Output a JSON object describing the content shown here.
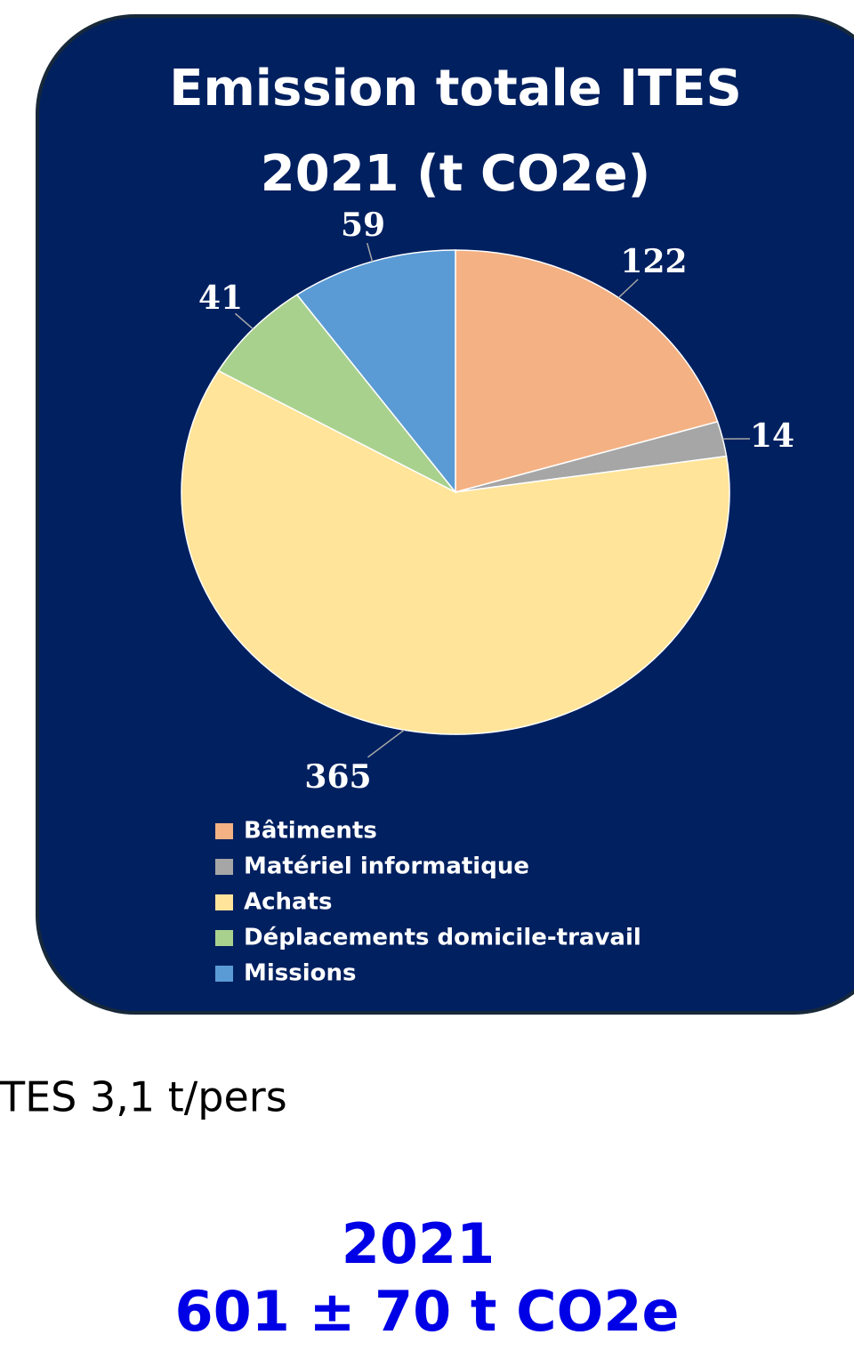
{
  "chart_data": {
    "type": "pie",
    "title": "Emission totale ITES 2021 (t CO2e)",
    "categories": [
      "Bâtiments",
      "Matériel informatique",
      "Achats",
      "Déplacements domicile-travail",
      "Missions"
    ],
    "values": [
      122,
      14,
      365,
      41,
      59
    ],
    "colors": [
      "#f4b183",
      "#a6a6a6",
      "#ffe499",
      "#a9d18e",
      "#5b9bd5"
    ],
    "legend": "bottom"
  },
  "per_person": "TES 3,1 t/pers",
  "total": {
    "year": "2021",
    "label": "601 ± 70 t CO2e"
  }
}
